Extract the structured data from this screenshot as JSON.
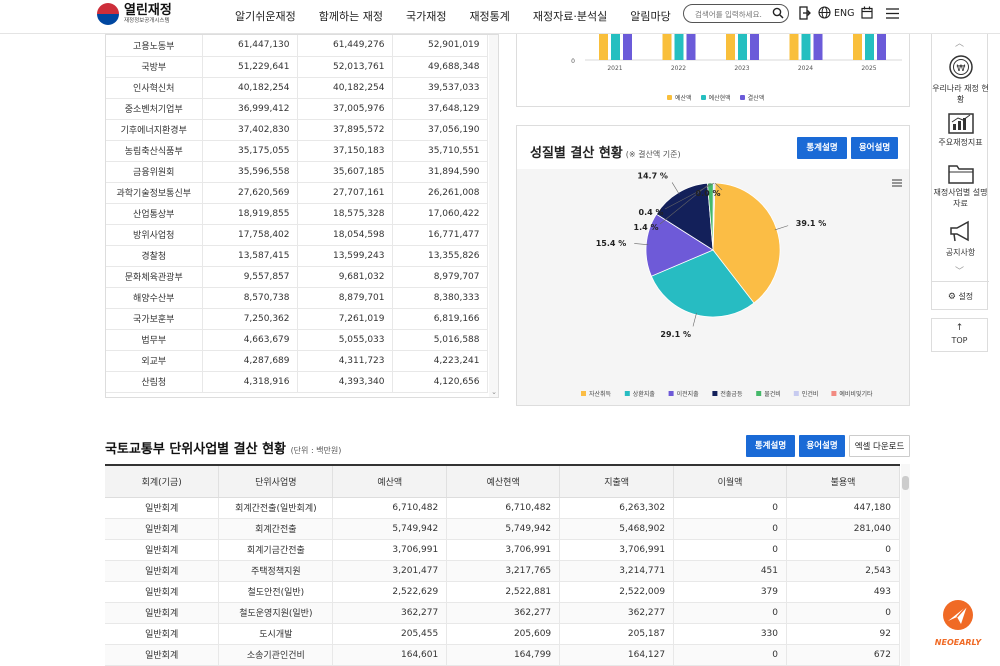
{
  "header": {
    "logo_title": "열린재정",
    "logo_subtitle": "재정정보공개시스템",
    "nav": [
      "알기쉬운재정",
      "함께하는 재정",
      "국가재정",
      "재정통계",
      "재정자료·분석실",
      "알림마당"
    ],
    "search_placeholder": "검색어를 입력하세요.",
    "lang_label": "ENG"
  },
  "ministry_table": {
    "rows": [
      {
        "name": "고용노동부",
        "a": "61,447,130",
        "b": "61,449,276",
        "c": "52,901,019"
      },
      {
        "name": "국방부",
        "a": "51,229,641",
        "b": "52,013,761",
        "c": "49,688,348"
      },
      {
        "name": "인사혁신처",
        "a": "40,182,254",
        "b": "40,182,254",
        "c": "39,537,033"
      },
      {
        "name": "중소벤처기업부",
        "a": "36,999,412",
        "b": "37,005,976",
        "c": "37,648,129"
      },
      {
        "name": "기후에너지환경부",
        "a": "37,402,830",
        "b": "37,895,572",
        "c": "37,056,190"
      },
      {
        "name": "농림축산식품부",
        "a": "35,175,055",
        "b": "37,150,183",
        "c": "35,710,551"
      },
      {
        "name": "금융위원회",
        "a": "35,596,558",
        "b": "35,607,185",
        "c": "31,894,590"
      },
      {
        "name": "과학기술정보통신부",
        "a": "27,620,569",
        "b": "27,707,161",
        "c": "26,261,008"
      },
      {
        "name": "산업통상부",
        "a": "18,919,855",
        "b": "18,575,328",
        "c": "17,060,422"
      },
      {
        "name": "방위사업청",
        "a": "17,758,402",
        "b": "18,054,598",
        "c": "16,771,477"
      },
      {
        "name": "경찰청",
        "a": "13,587,415",
        "b": "13,599,243",
        "c": "13,355,826"
      },
      {
        "name": "문화체육관광부",
        "a": "9,557,857",
        "b": "9,681,032",
        "c": "8,979,707"
      },
      {
        "name": "해양수산부",
        "a": "8,570,738",
        "b": "8,879,701",
        "c": "8,380,333"
      },
      {
        "name": "국가보훈부",
        "a": "7,250,362",
        "b": "7,261,019",
        "c": "6,819,166"
      },
      {
        "name": "법무부",
        "a": "4,663,679",
        "b": "5,055,033",
        "c": "5,016,588"
      },
      {
        "name": "외교부",
        "a": "4,287,689",
        "b": "4,311,723",
        "c": "4,223,241"
      },
      {
        "name": "산림청",
        "a": "4,318,916",
        "b": "4,393,340",
        "c": "4,120,656"
      }
    ]
  },
  "chart_data": [
    {
      "type": "bar",
      "categories": [
        "2021",
        "2022",
        "2023",
        "2024",
        "2025"
      ],
      "series": [
        {
          "name": "예산액",
          "color": "#f9bf3b"
        },
        {
          "name": "예산현액",
          "color": "#25bfc0"
        },
        {
          "name": "결산액",
          "color": "#6b5bd9"
        }
      ],
      "y_tick_labels": [
        "0"
      ]
    },
    {
      "type": "pie",
      "title": "성질별 결산 현황",
      "subtitle": "(※ 결산액 기준)",
      "slices": [
        {
          "name": "자산취득",
          "value": 39.1,
          "label": "39.1 %",
          "color": "#fbbd45"
        },
        {
          "name": "상환지출",
          "value": 29.1,
          "label": "29.1 %",
          "color": "#27bcc2"
        },
        {
          "name": "이전지출",
          "value": 15.4,
          "label": "15.4 %",
          "color": "#6e5ad8"
        },
        {
          "name": "전출금등",
          "value": 14.7,
          "label": "14.7 %",
          "color": "#13205a"
        },
        {
          "name": "물건비",
          "value": 1.4,
          "label": "1.4 %",
          "color": "#45b96a"
        },
        {
          "name": "인건비",
          "value": 0.4,
          "label": "0.4 %",
          "color": "#c7cbf0"
        },
        {
          "name": "예비비및기타",
          "value": 0.0,
          "label": "0.0 %",
          "color": "#f28b82"
        }
      ]
    }
  ],
  "pie_panel": {
    "btn_stats": "통계설명",
    "btn_terms": "용어설명"
  },
  "unit_section": {
    "title": "국토교통부 단위사업별 결산 현황",
    "unit": "(단위 : 백만원)",
    "btn_stats": "통계설명",
    "btn_terms": "용어설명",
    "btn_excel": "엑셀 다운로드",
    "columns": [
      "회계(기금)",
      "단위사업명",
      "예산액",
      "예산현액",
      "지출액",
      "이월액",
      "불용액"
    ],
    "rows": [
      [
        "일반회계",
        "회계간전출(일반회계)",
        "6,710,482",
        "6,710,482",
        "6,263,302",
        "0",
        "447,180"
      ],
      [
        "일반회계",
        "회계간전출",
        "5,749,942",
        "5,749,942",
        "5,468,902",
        "0",
        "281,040"
      ],
      [
        "일반회계",
        "회계기금간전출",
        "3,706,991",
        "3,706,991",
        "3,706,991",
        "0",
        "0"
      ],
      [
        "일반회계",
        "주택정책지원",
        "3,201,477",
        "3,217,765",
        "3,214,771",
        "451",
        "2,543"
      ],
      [
        "일반회계",
        "철도안전(일반)",
        "2,522,629",
        "2,522,881",
        "2,522,009",
        "379",
        "493"
      ],
      [
        "일반회계",
        "철도운영지원(일반)",
        "362,277",
        "362,277",
        "362,277",
        "0",
        "0"
      ],
      [
        "일반회계",
        "도시개발",
        "205,455",
        "205,609",
        "205,187",
        "330",
        "92"
      ],
      [
        "일반회계",
        "소송기관인건비",
        "164,601",
        "164,799",
        "164,127",
        "0",
        "672"
      ]
    ]
  },
  "side_menu": {
    "items": [
      "우리나라 재정 현황",
      "주요재정지표",
      "재정사업별 설명자료",
      "공지사항"
    ],
    "settings": "설정",
    "top": "TOP"
  },
  "watermark": "NEOEARLY"
}
